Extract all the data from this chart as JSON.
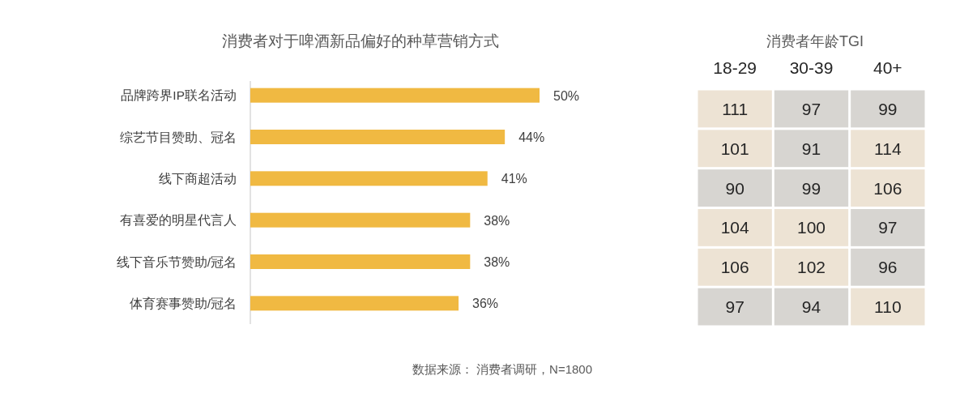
{
  "chart_data": [
    {
      "type": "bar",
      "title": "消费者对于啤酒新品偏好的种草营销方式",
      "orientation": "horizontal",
      "tick_labels": "y",
      "categories": [
        "品牌跨界IP联名活动",
        "综艺节目赞助、冠名",
        "线下商超活动",
        "有喜爱的明星代言人",
        "线下音乐节赞助/冠名",
        "体育赛事赞助/冠名"
      ],
      "values": [
        50,
        44,
        41,
        38,
        38,
        36
      ],
      "color": "#f0b942",
      "value_labels": [
        "50%",
        "44%",
        "41%",
        "38%",
        "38%",
        "36%"
      ],
      "annotations": [
        "数据来源： 消费者调研，N=1800"
      ]
    },
    {
      "type": "heatmap",
      "title": "消费者年龄TGI",
      "categories": [
        "18-29",
        "30-39",
        "40+"
      ],
      "y_categories": [
        null,
        null,
        null,
        null,
        null,
        null
      ],
      "data_labels": true,
      "cells": [
        [
          111,
          97,
          99
        ],
        [
          101,
          91,
          114
        ],
        [
          90,
          99,
          106
        ],
        [
          104,
          100,
          97
        ],
        [
          106,
          102,
          96
        ],
        [
          97,
          94,
          110
        ]
      ],
      "colors": [
        [
          "#ede3d4",
          "#d7d5d1",
          "#d7d5d1"
        ],
        [
          "#ede3d4",
          "#d7d5d1",
          "#ede3d4"
        ],
        [
          "#d7d5d1",
          "#d7d5d1",
          "#ede3d4"
        ],
        [
          "#ede3d4",
          "#ede3d4",
          "#d7d5d1"
        ],
        [
          "#ede3d4",
          "#ede3d4",
          "#d7d5d1"
        ],
        [
          "#d7d5d1",
          "#d7d5d1",
          "#ede3d4"
        ]
      ]
    }
  ]
}
